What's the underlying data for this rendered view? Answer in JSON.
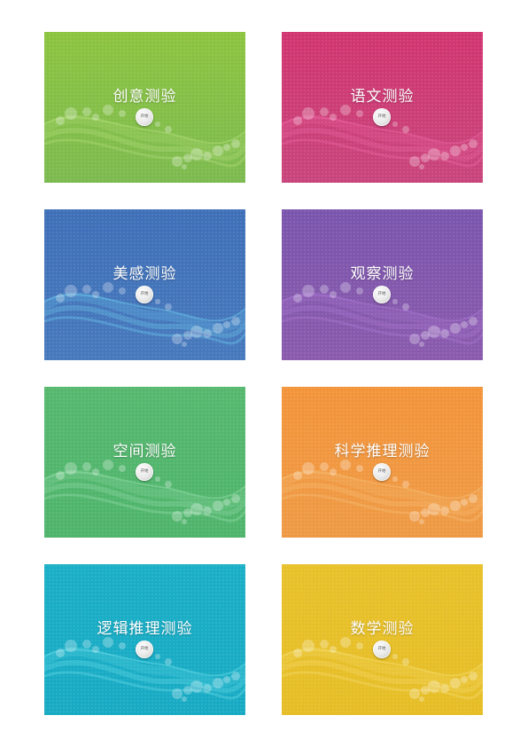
{
  "cards": [
    {
      "title": "创意测验",
      "button_label": "开始",
      "color_top": "#8cc43f",
      "color_bottom": "#7cba4f",
      "wave_color": "#b8e080"
    },
    {
      "title": "语文测验",
      "button_label": "开始",
      "color_top": "#d13570",
      "color_bottom": "#c8457c",
      "wave_color": "#f06aa8"
    },
    {
      "title": "美感测验",
      "button_label": "开始",
      "color_top": "#3e6fb8",
      "color_bottom": "#4779bd",
      "wave_color": "#6fd0f0"
    },
    {
      "title": "观察测验",
      "button_label": "开始",
      "color_top": "#7a55ad",
      "color_bottom": "#8a5aad",
      "wave_color": "#b07ad6"
    },
    {
      "title": "空间测验",
      "button_label": "开始",
      "color_top": "#55b86e",
      "color_bottom": "#4fb46c",
      "wave_color": "#9adfae"
    },
    {
      "title": "科学推理测验",
      "button_label": "开始",
      "color_top": "#f3943a",
      "color_bottom": "#ee9a45",
      "wave_color": "#f7c27a"
    },
    {
      "title": "逻辑推理测验",
      "button_label": "开始",
      "color_top": "#1aafc7",
      "color_bottom": "#18aac3",
      "wave_color": "#6fe0ea"
    },
    {
      "title": "数学测验",
      "button_label": "开始",
      "color_top": "#e8c12a",
      "color_bottom": "#e6bd26",
      "wave_color": "#f7df75"
    }
  ]
}
